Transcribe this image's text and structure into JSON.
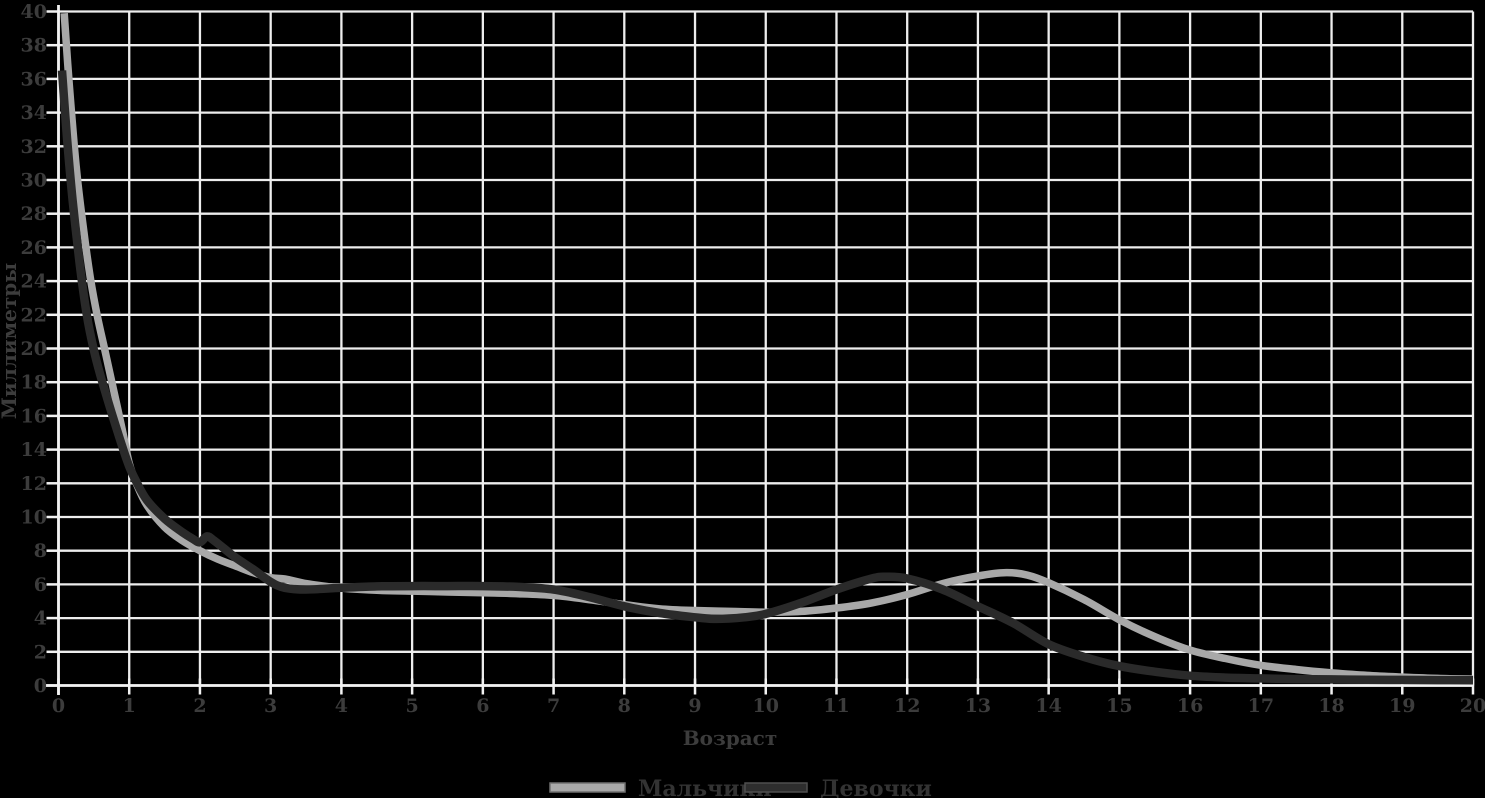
{
  "chart_data": {
    "type": "line",
    "title": "",
    "xlabel": "Возраст",
    "ylabel": "Миллиметры",
    "xlim": [
      0,
      20
    ],
    "ylim": [
      0,
      40
    ],
    "x_ticks": [
      0,
      1,
      2,
      3,
      4,
      5,
      6,
      7,
      8,
      9,
      10,
      11,
      12,
      13,
      14,
      15,
      16,
      17,
      18,
      19,
      20
    ],
    "y_ticks": [
      0,
      2,
      4,
      6,
      8,
      10,
      12,
      14,
      16,
      18,
      20,
      22,
      24,
      26,
      28,
      30,
      32,
      34,
      36,
      38,
      40
    ],
    "grid": true,
    "legend_position": "bottom-center",
    "colors": {
      "background": "#000000",
      "grid": "#ededed",
      "axis": "#f2f2f2",
      "text": "#3c3c3c",
      "legend_text": "#333333"
    },
    "series": [
      {
        "name": "Мальчики",
        "color": "#a8a8a8",
        "swatch_border": "#707070",
        "stroke_width": 7.5,
        "points": [
          [
            0.08,
            39.9
          ],
          [
            0.15,
            35.8
          ],
          [
            0.25,
            30.8
          ],
          [
            0.35,
            27.2
          ],
          [
            0.45,
            24.2
          ],
          [
            0.55,
            21.9
          ],
          [
            0.65,
            20.0
          ],
          [
            0.75,
            18.1
          ],
          [
            0.9,
            15.2
          ],
          [
            1.0,
            13.2
          ],
          [
            1.1,
            12.0
          ],
          [
            1.25,
            10.7
          ],
          [
            1.5,
            9.4
          ],
          [
            1.75,
            8.6
          ],
          [
            2.0,
            8.0
          ],
          [
            2.25,
            7.5
          ],
          [
            2.5,
            7.1
          ],
          [
            2.75,
            6.7
          ],
          [
            3.0,
            6.4
          ],
          [
            3.2,
            6.32
          ],
          [
            3.5,
            6.05
          ],
          [
            3.75,
            5.9
          ],
          [
            4.0,
            5.78
          ],
          [
            4.5,
            5.65
          ],
          [
            5.0,
            5.6
          ],
          [
            5.5,
            5.55
          ],
          [
            6.0,
            5.5
          ],
          [
            6.5,
            5.45
          ],
          [
            7.0,
            5.35
          ],
          [
            7.5,
            5.1
          ],
          [
            8.0,
            4.8
          ],
          [
            8.5,
            4.55
          ],
          [
            9.0,
            4.45
          ],
          [
            9.5,
            4.4
          ],
          [
            10.0,
            4.35
          ],
          [
            10.5,
            4.4
          ],
          [
            11.0,
            4.6
          ],
          [
            11.5,
            4.9
          ],
          [
            12.0,
            5.4
          ],
          [
            12.5,
            6.05
          ],
          [
            13.0,
            6.5
          ],
          [
            13.4,
            6.7
          ],
          [
            13.7,
            6.55
          ],
          [
            14.0,
            6.1
          ],
          [
            14.5,
            5.1
          ],
          [
            15.0,
            3.9
          ],
          [
            15.5,
            2.9
          ],
          [
            16.0,
            2.1
          ],
          [
            16.5,
            1.6
          ],
          [
            17.0,
            1.2
          ],
          [
            17.5,
            0.95
          ],
          [
            18.0,
            0.75
          ],
          [
            18.5,
            0.6
          ],
          [
            19.0,
            0.5
          ],
          [
            19.5,
            0.42
          ],
          [
            20.0,
            0.38
          ]
        ]
      },
      {
        "name": "Девочки",
        "color": "#2a2a2a",
        "swatch_border": "#4f4f4f",
        "stroke_width": 8.5,
        "points": [
          [
            0.05,
            36.5
          ],
          [
            0.12,
            32.5
          ],
          [
            0.2,
            28.8
          ],
          [
            0.3,
            25.0
          ],
          [
            0.4,
            22.0
          ],
          [
            0.5,
            19.9
          ],
          [
            0.6,
            18.3
          ],
          [
            0.75,
            16.2
          ],
          [
            0.9,
            14.2
          ],
          [
            1.0,
            13.0
          ],
          [
            1.1,
            12.1
          ],
          [
            1.25,
            11.0
          ],
          [
            1.5,
            9.9
          ],
          [
            1.75,
            9.1
          ],
          [
            1.9,
            8.7
          ],
          [
            2.0,
            8.5
          ],
          [
            2.1,
            8.85
          ],
          [
            2.2,
            8.6
          ],
          [
            2.35,
            8.1
          ],
          [
            2.5,
            7.6
          ],
          [
            2.75,
            6.9
          ],
          [
            3.0,
            6.15
          ],
          [
            3.2,
            5.8
          ],
          [
            3.5,
            5.7
          ],
          [
            4.0,
            5.8
          ],
          [
            4.5,
            5.88
          ],
          [
            5.0,
            5.9
          ],
          [
            5.5,
            5.9
          ],
          [
            6.0,
            5.9
          ],
          [
            6.5,
            5.85
          ],
          [
            7.0,
            5.7
          ],
          [
            7.5,
            5.25
          ],
          [
            8.0,
            4.7
          ],
          [
            8.5,
            4.3
          ],
          [
            9.0,
            4.05
          ],
          [
            9.3,
            3.95
          ],
          [
            9.7,
            4.05
          ],
          [
            10.0,
            4.25
          ],
          [
            10.5,
            4.9
          ],
          [
            11.0,
            5.7
          ],
          [
            11.5,
            6.35
          ],
          [
            11.7,
            6.45
          ],
          [
            12.0,
            6.35
          ],
          [
            12.5,
            5.7
          ],
          [
            13.0,
            4.7
          ],
          [
            13.5,
            3.7
          ],
          [
            14.0,
            2.45
          ],
          [
            14.5,
            1.7
          ],
          [
            15.0,
            1.15
          ],
          [
            15.5,
            0.82
          ],
          [
            16.0,
            0.58
          ],
          [
            16.5,
            0.47
          ],
          [
            17.0,
            0.42
          ],
          [
            17.5,
            0.38
          ],
          [
            18.0,
            0.36
          ],
          [
            18.5,
            0.34
          ],
          [
            19.0,
            0.33
          ],
          [
            19.5,
            0.32
          ],
          [
            20.0,
            0.31
          ]
        ]
      }
    ]
  }
}
